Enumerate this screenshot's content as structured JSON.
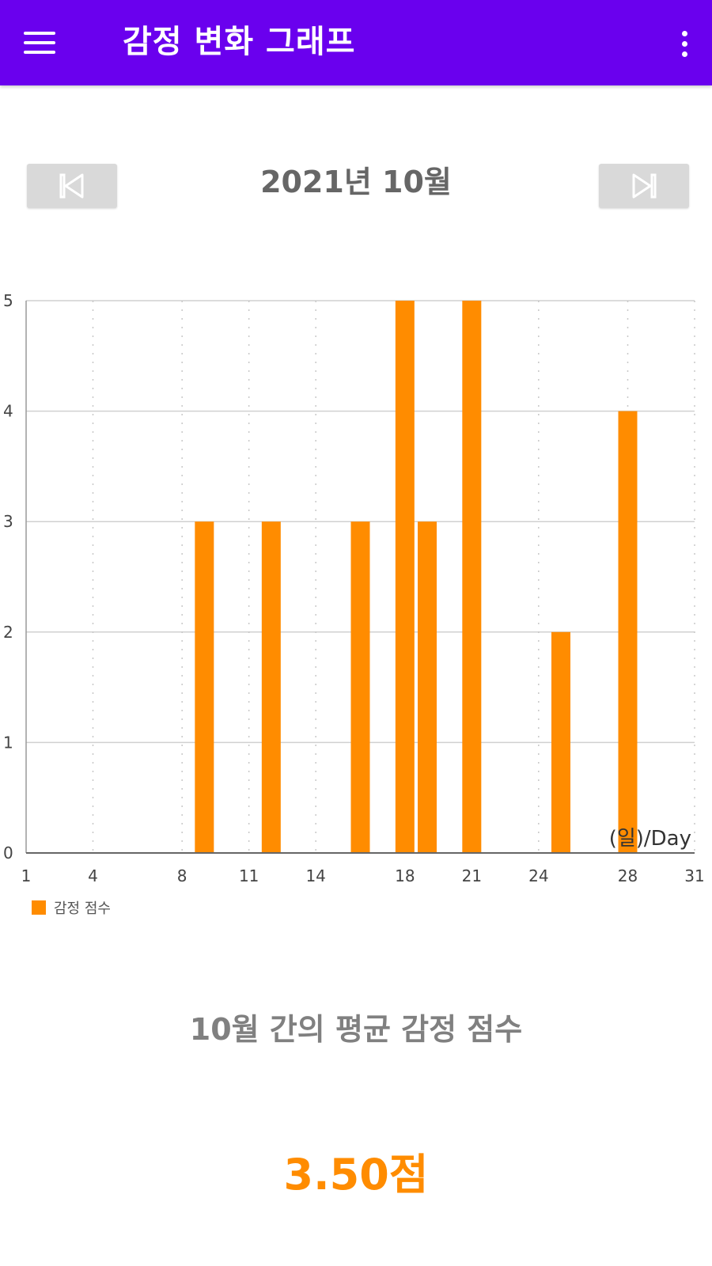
{
  "app_bar": {
    "title": "감정 변화 그래프",
    "menu_icon": "hamburger-menu-icon",
    "more_icon": "more-vert-icon",
    "color": "#6a00ee"
  },
  "month_nav": {
    "title": "2021년 10월",
    "prev_icon": "skip-previous-icon",
    "next_icon": "skip-next-icon"
  },
  "legend": {
    "label": "감정 점수",
    "color": "#ff8c00"
  },
  "summary": {
    "label": "10월 간의 평균 감정 점수",
    "value": "3.50점",
    "value_color": "#ff8c00"
  },
  "chart_data": {
    "type": "bar",
    "series": [
      {
        "name": "감정 점수",
        "color": "#ff8c00",
        "points": [
          {
            "x": 9,
            "y": 3
          },
          {
            "x": 12,
            "y": 3
          },
          {
            "x": 16,
            "y": 3
          },
          {
            "x": 18,
            "y": 5
          },
          {
            "x": 19,
            "y": 3
          },
          {
            "x": 21,
            "y": 5
          },
          {
            "x": 25,
            "y": 2
          },
          {
            "x": 28,
            "y": 4
          }
        ]
      }
    ],
    "x_ticks": [
      "1",
      "4",
      "8",
      "11",
      "14",
      "18",
      "21",
      "24",
      "28",
      "31"
    ],
    "y_ticks": [
      "0",
      "1",
      "2",
      "3",
      "4",
      "5"
    ],
    "xlim": [
      1,
      31
    ],
    "ylim": [
      0,
      5
    ],
    "xlabel": "(일)/Day",
    "grid": true,
    "legend_position": "bottom-left"
  }
}
